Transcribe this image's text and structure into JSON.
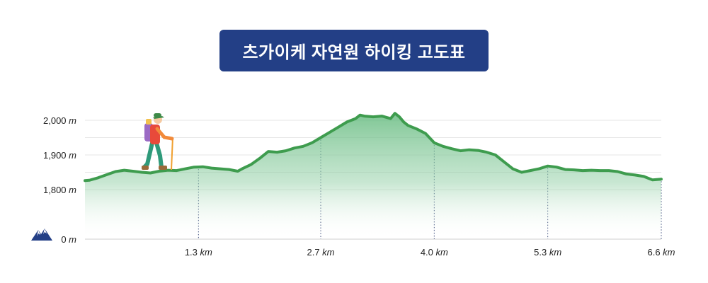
{
  "title": "츠가이케 자연원 하이킹 고도표",
  "chart_data": {
    "type": "area",
    "title": "츠가이케 자연원 하이킹 고도표",
    "xlabel": "",
    "ylabel": "",
    "x_unit": "km",
    "y_unit": "m",
    "x_ticks": [
      {
        "value": 1.3,
        "label": "1.3"
      },
      {
        "value": 2.7,
        "label": "2.7"
      },
      {
        "value": 4.0,
        "label": "4.0"
      },
      {
        "value": 5.3,
        "label": "5.3"
      },
      {
        "value": 6.6,
        "label": "6.6"
      }
    ],
    "y_ticks": [
      {
        "value": 0,
        "label": "0"
      },
      {
        "value": 1800,
        "label": "1,800"
      },
      {
        "value": 1900,
        "label": "1,900"
      },
      {
        "value": 2000,
        "label": "2,000"
      }
    ],
    "xlim": [
      0,
      6.6
    ],
    "grid": true,
    "colors": {
      "line": "#3e9c4e",
      "fill": "#7cc494",
      "title_bg": "#233f86",
      "icon": "#233f86"
    },
    "icons": [
      "mountain-icon",
      "hiker-icon"
    ],
    "series": [
      {
        "x": [
          0.0,
          0.05,
          0.15,
          0.25,
          0.35,
          0.45,
          0.55,
          0.65,
          0.75,
          0.85,
          0.95,
          1.05,
          1.15,
          1.25,
          1.35,
          1.45,
          1.55,
          1.65,
          1.75,
          1.8,
          1.9,
          2.0,
          2.1,
          2.2,
          2.3,
          2.4,
          2.5,
          2.6,
          2.7,
          2.8,
          2.9,
          3.0,
          3.1,
          3.15,
          3.2,
          3.3,
          3.4,
          3.5,
          3.55,
          3.6,
          3.65,
          3.7,
          3.8,
          3.9,
          4.0,
          4.1,
          4.2,
          4.3,
          4.4,
          4.5,
          4.6,
          4.7,
          4.8,
          4.9,
          5.0,
          5.1,
          5.2,
          5.3,
          5.4,
          5.5,
          5.6,
          5.7,
          5.8,
          5.9,
          6.0,
          6.1,
          6.2,
          6.3,
          6.4,
          6.5,
          6.6
        ],
        "y": [
          1826,
          1827,
          1834,
          1843,
          1852,
          1856,
          1853,
          1850,
          1848,
          1853,
          1856,
          1855,
          1860,
          1865,
          1866,
          1862,
          1860,
          1858,
          1853,
          1860,
          1872,
          1890,
          1910,
          1908,
          1912,
          1920,
          1925,
          1935,
          1950,
          1965,
          1980,
          1995,
          2005,
          2015,
          2012,
          2010,
          2012,
          2005,
          2020,
          2010,
          1995,
          1985,
          1975,
          1962,
          1935,
          1925,
          1918,
          1912,
          1915,
          1913,
          1908,
          1900,
          1880,
          1860,
          1850,
          1855,
          1860,
          1868,
          1865,
          1858,
          1857,
          1855,
          1856,
          1855,
          1855,
          1852,
          1845,
          1842,
          1838,
          1828,
          1830
        ]
      }
    ]
  }
}
